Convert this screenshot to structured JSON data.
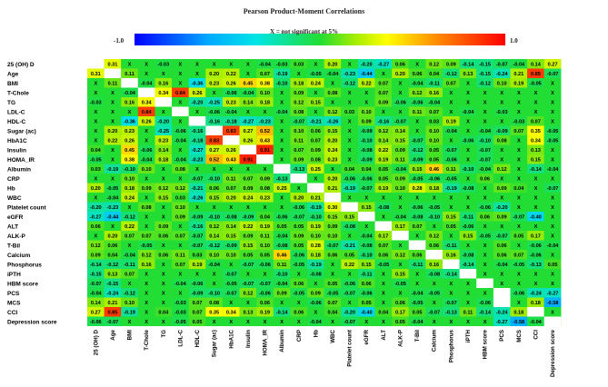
{
  "chart_data": {
    "type": "heatmap",
    "title": "Pearson Product-Moment Correlations",
    "note": "X = not significant at 5%",
    "colorbar": {
      "min_label": "-1.0",
      "max_label": "1.0",
      "min": -1.0,
      "max": 1.0
    },
    "row_labels": [
      "25 (OH) D",
      "Age",
      "BMI",
      "T-Chole",
      "TG",
      "LDL-C",
      "HDL-C",
      "Sugar (ac)",
      "HbA1C",
      "Insulin",
      "HOMA_IR",
      "Albumin",
      "CRP",
      "Hb",
      "WBC",
      "Platelet count",
      "eGFR",
      "ALT",
      "ALK-P",
      "T-Bil",
      "Calcium",
      "Phosphorus",
      "iPTH",
      "HBM score",
      "PCS",
      "MCS",
      "CCI",
      "Depression score"
    ],
    "col_labels": [
      "25 (OH) D",
      "Age",
      "BMI",
      "T-Chole",
      "TG",
      "LDL-C",
      "HDL-C",
      "Sugar (ac)",
      "HbA1C",
      "Insulin",
      "HOMA_IR",
      "Albumin",
      "CRP",
      "Hb",
      "WBC",
      "Platelet count",
      "eGFR",
      "ALT",
      "ALK-P",
      "T-Bil",
      "Calcium",
      "Phosphorus",
      "iPTH",
      "HBM score",
      "PCS",
      "MCS",
      "CCI",
      "Depression score"
    ],
    "values": [
      [
        "",
        "0.31",
        "X",
        "X",
        "-0.03",
        "X",
        "X",
        "X",
        "X",
        "X",
        "-0.04",
        "-0.03",
        "0.03",
        "X",
        "0.20",
        "X",
        "-0.20",
        "-0.27",
        "0.06",
        "X",
        "0.12",
        "0.09",
        "-0.14",
        "-0.15",
        "-0.07",
        "-0.04",
        "0.14",
        "0.27"
      ],
      [
        "0.31",
        "",
        "0.11",
        "X",
        "X",
        "X",
        "X",
        "0.20",
        "0.22",
        "X",
        "0.07",
        "-0.19",
        "X",
        "-0.05",
        "-0.04",
        "-0.23",
        "-0.44",
        "X",
        "0.20",
        "0.06",
        "0.04",
        "-0.12",
        "0.13",
        "-0.15",
        "-0.24",
        "0.21",
        "0.85",
        "-0.07"
      ],
      [
        "X",
        "0.11",
        "",
        "-0.04",
        "0.16",
        "X",
        "-0.36",
        "0.23",
        "0.26",
        "0.45",
        "0.38",
        "-0.10",
        "0.18",
        "0.24",
        "X",
        "-0.12",
        "0.22",
        "0.07",
        "X",
        "-0.04",
        "-0.11",
        "0.07",
        "X",
        "-0.12",
        "0.10",
        "0.19",
        "-0.05",
        "X"
      ],
      [
        "X",
        "X",
        "-0.04",
        "",
        "0.34",
        "0.84",
        "0.26",
        "X",
        "-0.06",
        "-0.04",
        "0.10",
        "X",
        "0.09",
        "X",
        "0.08",
        "X",
        "X",
        "0.07",
        "X",
        "0.12",
        "0.16",
        "X",
        "X",
        "X",
        "X",
        "X",
        "X",
        "X"
      ],
      [
        "-0.03",
        "X",
        "0.16",
        "0.34",
        "",
        "X",
        "-0.20",
        "-0.25",
        "0.23",
        "0.14",
        "0.18",
        "X",
        "0.12",
        "0.15",
        "X",
        "X",
        "X",
        "0.09",
        "-0.06",
        "-0.06",
        "-0.04",
        "X",
        "X",
        "X",
        "X",
        "X",
        "X",
        "X"
      ],
      [
        "X",
        "X",
        "X",
        "0.84",
        "X",
        "",
        "X",
        "-0.06",
        "-0.04",
        "X",
        "X",
        "-0.04",
        "0.08",
        "X",
        "0.12",
        "0.03",
        "0.10",
        "X",
        "X",
        "0.11",
        "0.07",
        "X",
        "-0.04",
        "X",
        "-0.03",
        "X",
        "X",
        "X"
      ],
      [
        "X",
        "X",
        "-0.36",
        "0.26",
        "-0.20",
        "X",
        "",
        "-0.16",
        "-0.18",
        "-0.27",
        "-0.23",
        "X",
        "-0.07",
        "-0.21",
        "-0.26",
        "X",
        "0.09",
        "-0.16",
        "-0.07",
        "X",
        "0.03",
        "0.19",
        "X",
        "X",
        "X",
        "-0.03",
        "0.07",
        "X"
      ],
      [
        "X",
        "0.20",
        "0.23",
        "X",
        "-0.25",
        "-0.06",
        "-0.16",
        "",
        "0.83",
        "0.27",
        "0.52",
        "X",
        "0.10",
        "0.06",
        "0.15",
        "X",
        "-0.09",
        "0.12",
        "0.14",
        "X",
        "0.10",
        "-0.04",
        "X",
        "-0.04",
        "-0.09",
        "0.07",
        "0.35",
        "-0.05"
      ],
      [
        "X",
        "0.22",
        "0.26",
        "X",
        "0.23",
        "-0.04",
        "-0.18",
        "0.83",
        "",
        "0.26",
        "0.43",
        "X",
        "0.11",
        "0.07",
        "0.20",
        "X",
        "-0.10",
        "0.14",
        "0.15",
        "-0.07",
        "0.10",
        "X",
        "-0.06",
        "-0.10",
        "0.08",
        "X",
        "0.34",
        "-0.05"
      ],
      [
        "0.04",
        "X",
        "0.45",
        "-0.06",
        "0.14",
        "X",
        "-0.27",
        "0.27",
        "0.26",
        "",
        "0.91",
        "X",
        "0.07",
        "0.09",
        "0.24",
        "X",
        "-0.08",
        "0.22",
        "0.09",
        "-0.12",
        "0.05",
        "-0.07",
        "X",
        "-0.07",
        "X",
        "X",
        "0.13",
        "X"
      ],
      [
        "-0.05",
        "X",
        "0.38",
        "-0.04",
        "0.18",
        "-0.04",
        "-0.23",
        "0.52",
        "0.43",
        "0.91",
        "",
        "X",
        "0.09",
        "0.08",
        "0.23",
        "X",
        "-0.09",
        "0.19",
        "0.11",
        "-0.09",
        "0.05",
        "-0.06",
        "X",
        "-0.07",
        "X",
        "X",
        "0.15",
        "X"
      ],
      [
        "0.03",
        "-0.19",
        "-0.10",
        "0.10",
        "X",
        "0.08",
        "X",
        "X",
        "X",
        "X",
        "X",
        "",
        "-0.13",
        "0.25",
        "X",
        "0.04",
        "0.04",
        "0.05",
        "-0.04",
        "0.15",
        "0.46",
        "0.11",
        "-0.10",
        "-0.04",
        "0.12",
        "X",
        "-0.14",
        "-0.04"
      ],
      [
        "X",
        "X",
        "0.10",
        "X",
        "X",
        "X",
        "-0.07",
        "-0.10",
        "0.11",
        "0.07",
        "0.09",
        "-0.13",
        "",
        "X",
        "0.20",
        "-0.06",
        "-0.06",
        "0.05",
        "0.09",
        "-0.05",
        "-0.06",
        "-0.05",
        "X",
        "0.06",
        "X",
        "X",
        "X",
        "X"
      ],
      [
        "0.20",
        "-0.05",
        "0.18",
        "0.09",
        "0.12",
        "0.12",
        "-0.21",
        "0.06",
        "0.07",
        "0.09",
        "0.08",
        "0.25",
        "X",
        "",
        "0.21",
        "-0.19",
        "-0.07",
        "0.19",
        "0.10",
        "0.28",
        "0.18",
        "-0.19",
        "-0.08",
        "X",
        "0.09",
        "0.04",
        "X",
        "-0.07"
      ],
      [
        "X",
        "-0.04",
        "0.24",
        "X",
        "0.15",
        "0.03",
        "-0.26",
        "0.15",
        "0.20",
        "0.24",
        "0.23",
        "X",
        "0.20",
        "0.21",
        "",
        "X",
        "X",
        "X",
        "X",
        "X",
        "X",
        "X",
        "X",
        "X",
        "X",
        "X",
        "X",
        "X"
      ],
      [
        "-0.20",
        "-0.23",
        "X",
        "0.08",
        "X",
        "0.10",
        "X",
        "X",
        "X",
        "X",
        "X",
        "X",
        "-0.06",
        "-0.19",
        "0.30",
        "",
        "0.15",
        "-0.08",
        "X",
        "-0.06",
        "-0.05",
        "X",
        "X",
        "-0.06",
        "-0.20",
        "X",
        "X",
        "X"
      ],
      [
        "-0.27",
        "-0.44",
        "-0.12",
        "X",
        "X",
        "0.09",
        "-0.09",
        "-0.10",
        "-0.08",
        "-0.09",
        "0.04",
        "-0.06",
        "-0.07",
        "-0.10",
        "0.15",
        "0.15",
        "",
        "X",
        "-0.04",
        "-0.08",
        "-0.10",
        "0.15",
        "-0.11",
        "0.06",
        "0.09",
        "-0.07",
        "-0.40",
        "X"
      ],
      [
        "0.06",
        "X",
        "0.22",
        "X",
        "0.09",
        "X",
        "-0.16",
        "0.12",
        "0.14",
        "0.22",
        "0.19",
        "0.05",
        "0.05",
        "0.19",
        "0.09",
        "-0.08",
        "X",
        "",
        "0.17",
        "0.07",
        "X",
        "0.05",
        "-0.06",
        "X",
        "X",
        "X",
        "X",
        "X"
      ],
      [
        "X",
        "0.20",
        "0.07",
        "0.07",
        "0.06",
        "0.07",
        "-0.07",
        "0.14",
        "0.15",
        "0.09",
        "0.11",
        "-0.04",
        "0.09",
        "0.10",
        "0.10",
        "X",
        "-0.04",
        "0.17",
        "",
        "X",
        "0.12",
        "X",
        "0.15",
        "-0.05",
        "-0.07",
        "0.05",
        "0.17",
        "X"
      ],
      [
        "0.12",
        "0.06",
        "X",
        "-0.05",
        "X",
        "X",
        "-0.07",
        "-0.12",
        "-0.09",
        "0.15",
        "0.10",
        "-0.08",
        "0.05",
        "0.28",
        "-0.07",
        "-0.21",
        "-0.08",
        "0.07",
        "X",
        "",
        "0.06",
        "-0.11",
        "X",
        "X",
        "0.06",
        "X",
        "-0.06",
        "-0.04"
      ],
      [
        "0.09",
        "0.04",
        "-0.04",
        "0.12",
        "0.06",
        "0.11",
        "0.03",
        "0.10",
        "0.10",
        "0.05",
        "0.05",
        "0.46",
        "-0.06",
        "0.18",
        "0.06",
        "0.05",
        "-0.10",
        "0.06",
        "0.12",
        "0.06",
        "",
        "0.16",
        "-0.08",
        "X",
        "0.06",
        "0.07",
        "-0.06",
        "X"
      ],
      [
        "-0.14",
        "-0.12",
        "-0.11",
        "0.16",
        "X",
        "0.07",
        "0.19",
        "-0.04",
        "X",
        "-0.07",
        "-0.06",
        "0.11",
        "-0.05",
        "-0.19",
        "X",
        "0.22",
        "0.15",
        "-0.05",
        "X",
        "-0.11",
        "0.16",
        "",
        "-0.14",
        "X",
        "-0.04",
        "-0.05",
        "-0.13",
        "0.05"
      ],
      [
        "-0.15",
        "0.13",
        "0.07",
        "X",
        "X",
        "X",
        "X",
        "X",
        "-0.07",
        "X",
        "X",
        "-0.10",
        "X",
        "-0.08",
        "X",
        "X",
        "-0.11",
        "X",
        "0.15",
        "X",
        "-0.08",
        "-0.14",
        "",
        "X",
        "X",
        "X",
        "X",
        "X"
      ],
      [
        "-0.07",
        "-0.15",
        "X",
        "X",
        "X",
        "-0.04",
        "-0.06",
        "X",
        "-0.05",
        "-0.07",
        "-0.07",
        "-0.04",
        "0.06",
        "X",
        "0.05",
        "-0.06",
        "0.06",
        "X",
        "-0.05",
        "X",
        "X",
        "X",
        "X",
        "",
        "X",
        "X",
        "X",
        "X"
      ],
      [
        "-0.04",
        "-0.24",
        "-0.12",
        "X",
        "X",
        "X",
        "-0.09",
        "-0.10",
        "-0.07",
        "0.12",
        "-0.06",
        "0.09",
        "-0.05",
        "0.09",
        "-0.05",
        "-0.07",
        "-0.06",
        "X",
        "X",
        "-0.04",
        "-0.05",
        "X",
        "X",
        "X",
        "",
        "-0.06",
        "-0.24",
        "-0.27"
      ],
      [
        "0.14",
        "0.21",
        "0.10",
        "X",
        "X",
        "-0.03",
        "0.07",
        "0.08",
        "X",
        "X",
        "0.06",
        "X",
        "X",
        "-0.06",
        "0.07",
        "X",
        "0.05",
        "X",
        "0.06",
        "-0.05",
        "X",
        "-0.07",
        "X",
        "-0.06",
        "",
        "X",
        "0.18",
        "-0.58"
      ],
      [
        "0.27",
        "0.85",
        "-0.19",
        "X",
        "0.04",
        "-0.03",
        "0.07",
        "0.35",
        "0.34",
        "0.13",
        "0.19",
        "-0.14",
        "0.06",
        "X",
        "0.04",
        "-0.20",
        "-0.40",
        "0.04",
        "0.17",
        "0.05",
        "-0.07",
        "-0.13",
        "0.11",
        "-0.14",
        "-0.24",
        "0.18",
        "",
        "X"
      ],
      [
        "-0.06",
        "-0.07",
        "X",
        "X",
        "X",
        "-0.05",
        "0.05",
        "X",
        "X",
        "X",
        "X",
        "X",
        "X",
        "-0.04",
        "X",
        "-0.07",
        "X",
        "X",
        "0.05",
        "-0.04",
        "X",
        "X",
        "X",
        "X",
        "-0.27",
        "-0.58",
        "-0.04",
        ""
      ]
    ]
  }
}
